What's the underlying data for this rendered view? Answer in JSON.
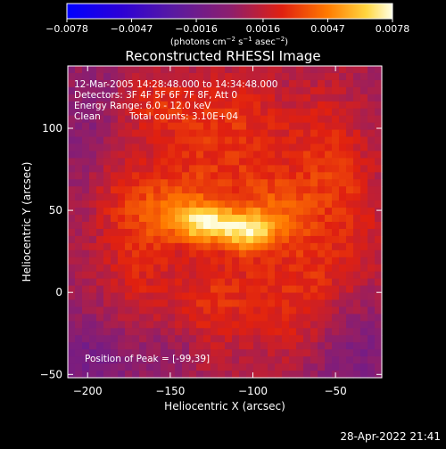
{
  "chart_data": {
    "type": "heatmap",
    "title": "Reconstructed RHESSI Image",
    "xlabel": "Heliocentric X (arcsec)",
    "ylabel": "Heliocentric Y (arcsec)",
    "xlim": [
      -212,
      -22
    ],
    "ylim": [
      -52,
      138
    ],
    "x_ticks": [
      -200,
      -150,
      -100,
      -50
    ],
    "x_tick_labels": [
      "−200",
      "−150",
      "−100",
      "−50"
    ],
    "y_ticks": [
      -50,
      0,
      50,
      100
    ],
    "y_tick_labels": [
      "−50",
      "0",
      "50",
      "100"
    ],
    "colorbar": {
      "min": -0.0078,
      "max": 0.0078,
      "ticks": [
        -0.0078,
        -0.0047,
        -0.0016,
        0.0016,
        0.0047,
        0.0078
      ],
      "tick_labels": [
        "−0.0078",
        "−0.0047",
        "−0.0016",
        "0.0016",
        "0.0047",
        "0.0078"
      ],
      "unit_parts": [
        "(photons cm",
        "−2",
        " s",
        "−1",
        " asec",
        "−2",
        ")"
      ]
    },
    "annotations": {
      "time": "12-Mar-2005 14:28:48.000 to 14:34:48.000",
      "detectors": "Detectors: 3F 4F 5F 6F 7F 8F, Att 0",
      "energy": "Energy Range: 6.0 - 12.0 keV",
      "method": "Clean",
      "counts": "Total counts: 3.10E+04",
      "peak": "Position of Peak = [-99,39]"
    },
    "peak_position": [
      -99,
      39
    ],
    "source_components": [
      {
        "x": -128,
        "y": 42,
        "amplitude": 0.0045,
        "sigma_x": 13,
        "sigma_y": 8
      },
      {
        "x": -103,
        "y": 37,
        "amplitude": 0.004,
        "sigma_x": 11,
        "sigma_y": 8
      },
      {
        "x": -150,
        "y": 50,
        "amplitude": 0.0022,
        "sigma_x": 18,
        "sigma_y": 14
      },
      {
        "x": -85,
        "y": 45,
        "amplitude": 0.0022,
        "sigma_x": 16,
        "sigma_y": 15
      },
      {
        "x": -115,
        "y": 70,
        "amplitude": 0.0018,
        "sigma_x": 40,
        "sigma_y": 25
      },
      {
        "x": -120,
        "y": 110,
        "amplitude": 0.0015,
        "sigma_x": 30,
        "sigma_y": 18
      },
      {
        "x": -170,
        "y": 15,
        "amplitude": 0.0015,
        "sigma_x": 15,
        "sigma_y": 30
      },
      {
        "x": -95,
        "y": 0,
        "amplitude": 0.0016,
        "sigma_x": 30,
        "sigma_y": 20
      },
      {
        "x": -55,
        "y": 80,
        "amplitude": 0.0016,
        "sigma_x": 14,
        "sigma_y": 30
      },
      {
        "x": -130,
        "y": -15,
        "amplitude": 0.0012,
        "sigma_x": 15,
        "sigma_y": 25
      },
      {
        "x": -60,
        "y": 10,
        "amplitude": 0.0011,
        "sigma_x": 14,
        "sigma_y": 25
      },
      {
        "x": -185,
        "y": 70,
        "amplitude": 0.0012,
        "sigma_x": 12,
        "sigma_y": 25
      },
      {
        "x": -35,
        "y": 40,
        "amplitude": 0.0012,
        "sigma_x": 10,
        "sigma_y": 30
      },
      {
        "x": -165,
        "y": 115,
        "amplitude": 0.0013,
        "sigma_x": 15,
        "sigma_y": 12
      },
      {
        "x": -75,
        "y": -30,
        "amplitude": 0.001,
        "sigma_x": 15,
        "sigma_y": 15
      },
      {
        "x": -195,
        "y": 100,
        "amplitude": -0.0015,
        "sigma_x": 18,
        "sigma_y": 30
      },
      {
        "x": -200,
        "y": -40,
        "amplitude": -0.0018,
        "sigma_x": 25,
        "sigma_y": 20
      },
      {
        "x": -40,
        "y": -35,
        "amplitude": -0.0016,
        "sigma_x": 25,
        "sigma_y": 25
      },
      {
        "x": -145,
        "y": -35,
        "amplitude": -0.001,
        "sigma_x": 15,
        "sigma_y": 12
      }
    ]
  },
  "footer": {
    "timestamp": "28-Apr-2022 21:41"
  }
}
